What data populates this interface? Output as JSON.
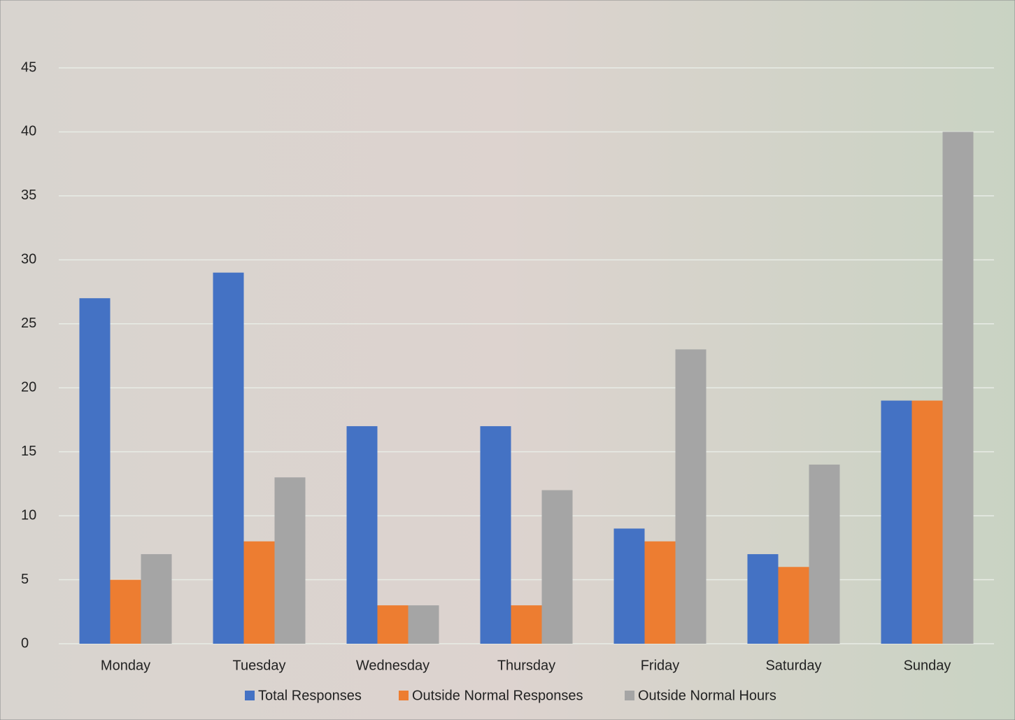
{
  "chart_data": {
    "type": "bar",
    "categories": [
      "Monday",
      "Tuesday",
      "Wednesday",
      "Thursday",
      "Friday",
      "Saturday",
      "Sunday"
    ],
    "series": [
      {
        "name": "Total Responses",
        "color": "#4472c4",
        "values": [
          27,
          29,
          17,
          17,
          9,
          7,
          19
        ]
      },
      {
        "name": "Outside Normal Responses",
        "color": "#ed7d31",
        "values": [
          5,
          8,
          3,
          3,
          8,
          6,
          19
        ]
      },
      {
        "name": "Outside Normal Hours",
        "color": "#a5a5a5",
        "values": [
          7,
          13,
          3,
          12,
          23,
          14,
          40
        ]
      }
    ],
    "ylim": [
      0,
      45
    ],
    "yticks": [
      0,
      5,
      10,
      15,
      20,
      25,
      30,
      35,
      40,
      45
    ],
    "grid": true,
    "legend": "bottom"
  }
}
